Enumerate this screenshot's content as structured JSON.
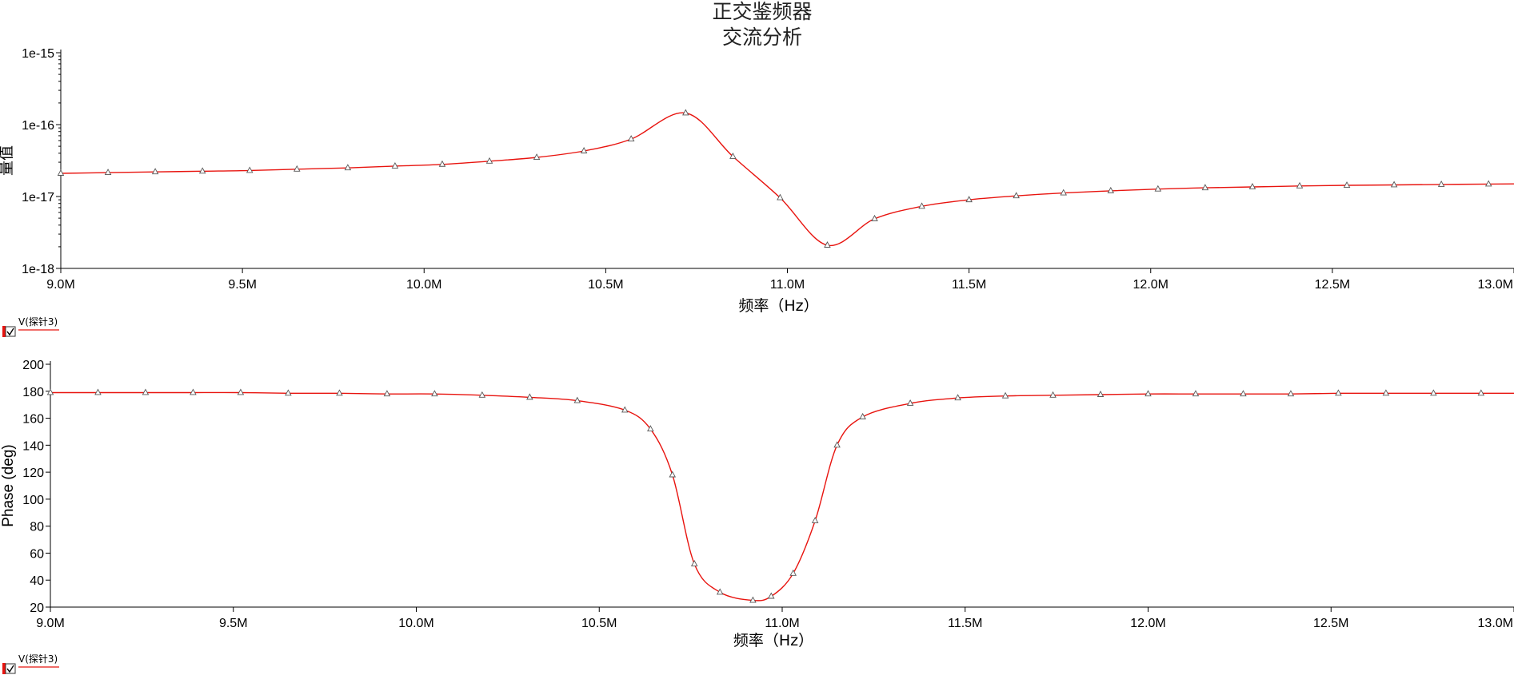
{
  "header": {
    "title": "正交鉴频器",
    "subtitle": "交流分析"
  },
  "chart_data": [
    {
      "type": "line",
      "panel": "magnitude",
      "xlabel": "频率（Hz）",
      "ylabel": "量值",
      "x_unit": "Hz",
      "xlim": [
        9000000.0,
        13000000.0
      ],
      "ylim": [
        1e-18,
        1e-15
      ],
      "y_scale": "log",
      "x_ticks": [
        9000000.0,
        9500000.0,
        10000000.0,
        10500000.0,
        11000000.0,
        11500000.0,
        12000000.0,
        12500000.0,
        13000000.0
      ],
      "x_tick_labels": [
        "9.0M",
        "9.5M",
        "10.0M",
        "10.5M",
        "11.0M",
        "11.5M",
        "12.0M",
        "12.5M",
        "13.0M"
      ],
      "y_ticks": [
        1e-18,
        1e-17,
        1e-16,
        1e-15
      ],
      "y_tick_labels": [
        "1e-18",
        "1e-17",
        "1e-16",
        "1e-15"
      ],
      "grid": false,
      "legend": "bottom-left",
      "color": "#e8140f",
      "series": [
        {
          "name": "V(探针3)",
          "x": [
            9000000.0,
            9130000.0,
            9260000.0,
            9390000.0,
            9520000.0,
            9650000.0,
            9790000.0,
            9920000.0,
            10050000.0,
            10180000.0,
            10310000.0,
            10440000.0,
            10570000.0,
            10720000.0,
            10850000.0,
            10980000.0,
            11110000.0,
            11240000.0,
            11370000.0,
            11500000.0,
            11630000.0,
            11760000.0,
            11890000.0,
            12020000.0,
            12150000.0,
            12280000.0,
            12410000.0,
            12540000.0,
            12670000.0,
            12800000.0,
            12930000.0,
            13000000.0
          ],
          "values": [
            2.1e-17,
            2.15e-17,
            2.2e-17,
            2.25e-17,
            2.3e-17,
            2.4e-17,
            2.5e-17,
            2.65e-17,
            2.8e-17,
            3.1e-17,
            3.5e-17,
            4.3e-17,
            6.3e-17,
            1.45e-16,
            3.6e-17,
            9.6e-18,
            2.1e-18,
            4.9e-18,
            7.3e-18,
            9e-18,
            1.02e-17,
            1.12e-17,
            1.2e-17,
            1.27e-17,
            1.32e-17,
            1.36e-17,
            1.4e-17,
            1.43e-17,
            1.45e-17,
            1.47e-17,
            1.49e-17,
            1.5e-17
          ]
        }
      ]
    },
    {
      "type": "line",
      "panel": "phase",
      "xlabel": "频率（Hz）",
      "ylabel": "Phase (deg)",
      "x_unit": "Hz",
      "xlim": [
        9000000.0,
        13000000.0
      ],
      "ylim": [
        20,
        200
      ],
      "y_scale": "linear",
      "x_ticks": [
        9000000.0,
        9500000.0,
        10000000.0,
        10500000.0,
        11000000.0,
        11500000.0,
        12000000.0,
        12500000.0,
        13000000.0
      ],
      "x_tick_labels": [
        "9.0M",
        "9.5M",
        "10.0M",
        "10.5M",
        "11.0M",
        "11.5M",
        "12.0M",
        "12.5M",
        "13.0M"
      ],
      "y_ticks": [
        20,
        40,
        60,
        80,
        100,
        120,
        140,
        160,
        180,
        200
      ],
      "y_tick_labels": [
        "20",
        "40",
        "60",
        "80",
        "100",
        "120",
        "140",
        "160",
        "180",
        "200"
      ],
      "grid": false,
      "legend": "bottom-left",
      "color": "#e8140f",
      "series": [
        {
          "name": "V(探针3)",
          "x": [
            9000000.0,
            9130000.0,
            9260000.0,
            9390000.0,
            9520000.0,
            9650000.0,
            9790000.0,
            9920000.0,
            10050000.0,
            10180000.0,
            10310000.0,
            10440000.0,
            10570000.0,
            10640000.0,
            10700000.0,
            10760000.0,
            10830000.0,
            10920000.0,
            10970000.0,
            11030000.0,
            11090000.0,
            11150000.0,
            11220000.0,
            11350000.0,
            11480000.0,
            11610000.0,
            11740000.0,
            11870000.0,
            12000000.0,
            12130000.0,
            12260000.0,
            12390000.0,
            12520000.0,
            12650000.0,
            12780000.0,
            12910000.0,
            13000000.0
          ],
          "values": [
            179,
            179,
            179,
            179,
            179,
            178.5,
            178.5,
            178,
            178,
            177,
            175.5,
            173,
            166,
            152,
            118,
            52,
            31,
            25,
            28,
            45,
            84,
            140,
            161,
            171,
            175,
            176.5,
            177,
            177.5,
            178,
            178,
            178,
            178,
            178.5,
            178.5,
            178.5,
            178.5,
            178.5
          ]
        }
      ]
    }
  ]
}
